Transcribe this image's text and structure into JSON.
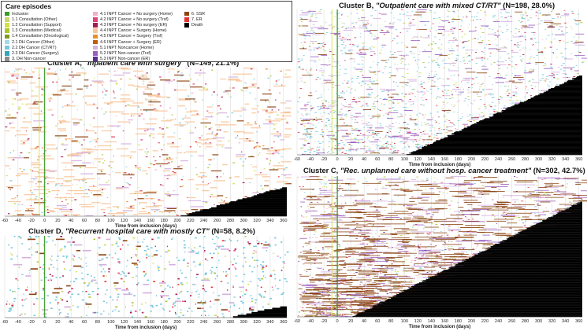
{
  "legend": {
    "title": "Care episodes",
    "items": [
      {
        "label": "Inclusion",
        "color": "#3a9a26"
      },
      {
        "label": "1.1 Consultation (Other)",
        "color": "#c9d86b"
      },
      {
        "label": "1.2 Consultation (Support)",
        "color": "#d4e04a"
      },
      {
        "label": "1.3 Consultation (Medical)",
        "color": "#aec52c"
      },
      {
        "label": "1.4 Consultation (Oncological)",
        "color": "#7f9a1f"
      },
      {
        "label": "2.1 DH Cancer (Other)",
        "color": "#a7d8e8"
      },
      {
        "label": "2.2 DH Cancer (CT/RT)",
        "color": "#74c9dd"
      },
      {
        "label": "2.3 DH Cancer (Surgery)",
        "color": "#33a6be"
      },
      {
        "label": "3. DH Non-cancer",
        "color": "#8c8c8c"
      },
      {
        "label": "4.1 INPT Cancer + No surgery (Home)",
        "color": "#f2b0c8"
      },
      {
        "label": "4.2 INPT Cancer + No surgery (Trsf)",
        "color": "#e0447a"
      },
      {
        "label": "4.3 INPT Cancer + No surgery (ER)",
        "color": "#a51c52"
      },
      {
        "label": "4.4 INPT Cancer + Surgery (Home)",
        "color": "#f8c59a"
      },
      {
        "label": "4.5 INPT Cancer + Surgery (Trsf)",
        "color": "#ee8d2a"
      },
      {
        "label": "4.6 INPT Cancer + Surgery (ER)",
        "color": "#c25a10"
      },
      {
        "label": "5.1 INPT Noncancer (Home)",
        "color": "#d4b0e0"
      },
      {
        "label": "5.2 INPT Non-cancer (Trsf)",
        "color": "#9b5fc0"
      },
      {
        "label": "5.3 INPT Non-cancer (ER)",
        "color": "#5b2d8a"
      },
      {
        "label": "6. SSR",
        "color": "#8b4513"
      },
      {
        "label": "7. ER",
        "color": "#e53333"
      },
      {
        "label": "Death",
        "color": "#000000"
      }
    ]
  },
  "chart_data": [
    {
      "type": "scatter",
      "title": "Cluster A, \"Inpatient care with surgery\" (N=149, 21.1%)",
      "title_main": "Cluster A, ",
      "title_quote": "\"Inpatient care with surgery\"",
      "title_tail": " (N=149, 21.1%)",
      "xlabel": "Time from inclusion (days)",
      "ylabel": "",
      "xlim": [
        -60,
        365
      ],
      "x_ticks": [
        -60,
        -40,
        -20,
        0,
        20,
        40,
        60,
        80,
        100,
        120,
        140,
        160,
        180,
        200,
        220,
        240,
        260,
        280,
        300,
        320,
        340,
        360
      ],
      "n_patients": 149,
      "dominant_episode": "4.4 INPT Cancer + Surgery (Home)",
      "death_fraction": 0.2,
      "grid": true
    },
    {
      "type": "scatter",
      "title": "Cluster B, \"Outpatient care with mixed CT/RT\" (N=198, 28.0%)",
      "title_main": "Cluster B, ",
      "title_quote": "\"Outpatient care with mixed CT/RT\"",
      "title_tail": " (N=198, 28.0%)",
      "xlabel": "Time from inclusion (days)",
      "ylabel": "",
      "xlim": [
        -60,
        365
      ],
      "x_ticks": [
        -60,
        -40,
        -20,
        0,
        20,
        40,
        60,
        80,
        100,
        120,
        140,
        160,
        180,
        200,
        220,
        240,
        260,
        280,
        300,
        320,
        340,
        360
      ],
      "n_patients": 198,
      "dominant_episode": "2.2 DH Cancer (CT/RT)",
      "death_fraction": 0.55,
      "grid": true
    },
    {
      "type": "scatter",
      "title": "Cluster C, \"Rec. unplanned care without hosp. cancer treatment\" (N=302, 42.7%)",
      "title_main": "Cluster C, ",
      "title_quote": "\"Rec. unplanned care without hosp. cancer treatment\"",
      "title_tail": " (N=302, 42.7%)",
      "xlabel": "Time from inclusion (days)",
      "ylabel": "",
      "xlim": [
        -60,
        365
      ],
      "x_ticks": [
        -60,
        -40,
        -20,
        0,
        20,
        40,
        60,
        80,
        100,
        120,
        140,
        160,
        180,
        200,
        220,
        240,
        260,
        280,
        300,
        320,
        340,
        360
      ],
      "n_patients": 302,
      "dominant_episode": "6. SSR",
      "death_fraction": 0.82,
      "grid": true
    },
    {
      "type": "scatter",
      "title": "Cluster D, \"Recurrent hospital care with mostly CT\" (N=58, 8.2%)",
      "title_main": "Cluster D, ",
      "title_quote": "\"Recurrent hospital care with mostly CT\"",
      "title_tail": " (N=58, 8.2%)",
      "xlabel": "Time from inclusion (days)",
      "ylabel": "",
      "xlim": [
        -60,
        365
      ],
      "x_ticks": [
        -60,
        -40,
        -20,
        0,
        20,
        40,
        60,
        80,
        100,
        120,
        140,
        160,
        180,
        200,
        220,
        240,
        260,
        280,
        300,
        320,
        340,
        360
      ],
      "n_patients": 58,
      "dominant_episode": "2.2 DH Cancer (CT/RT)",
      "death_fraction": 0.15,
      "grid": true
    }
  ]
}
